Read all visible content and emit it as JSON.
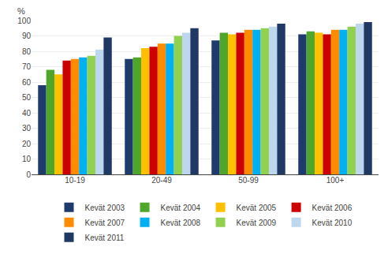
{
  "chart_data": {
    "type": "bar",
    "ylabel": "%",
    "categories": [
      "10-19",
      "20-49",
      "50-99",
      "100+"
    ],
    "series": [
      {
        "name": "Kevät 2003",
        "color": "#1F3B6E",
        "values": [
          58,
          75,
          87,
          91
        ]
      },
      {
        "name": "Kevät 2004",
        "color": "#4EA72A",
        "values": [
          68,
          76,
          92,
          93
        ]
      },
      {
        "name": "Kevät 2005",
        "color": "#FFC000",
        "values": [
          65,
          82,
          91,
          92
        ]
      },
      {
        "name": "Kevät 2006",
        "color": "#CC0000",
        "values": [
          74,
          83,
          92,
          91
        ]
      },
      {
        "name": "Kevät 2007",
        "color": "#FF8C00",
        "values": [
          75,
          85,
          94,
          94
        ]
      },
      {
        "name": "Kevät 2008",
        "color": "#00B0F0",
        "values": [
          76,
          85,
          94,
          94
        ]
      },
      {
        "name": "Kevät 2009",
        "color": "#92D050",
        "values": [
          77,
          90,
          95,
          96
        ]
      },
      {
        "name": "Kevät 2010",
        "color": "#BDD7EE",
        "values": [
          81,
          92,
          96,
          98
        ]
      },
      {
        "name": "Kevät 2011",
        "color": "#1F3864",
        "values": [
          89,
          95,
          98,
          99
        ]
      }
    ],
    "ylim": [
      0,
      100
    ],
    "yticks": [
      0,
      10,
      20,
      30,
      40,
      50,
      60,
      70,
      80,
      90,
      100
    ],
    "grid": true,
    "legend": "bottom"
  }
}
